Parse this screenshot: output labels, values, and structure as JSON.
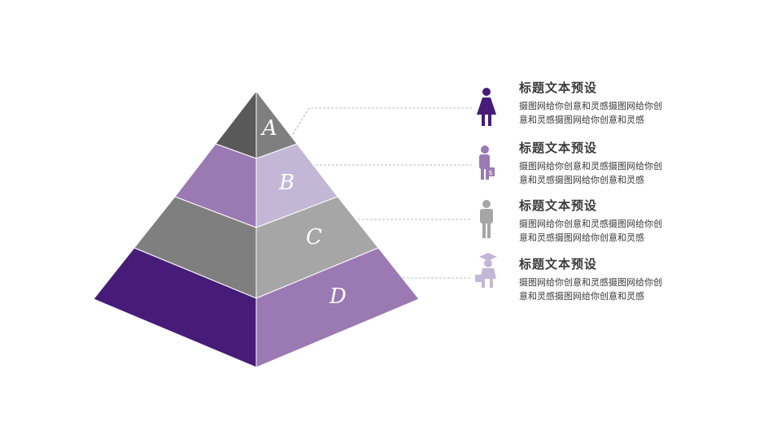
{
  "colors": {
    "purple_dark": "#461c78",
    "purple_mid": "#9b7ab3",
    "purple_light": "#c4b7d6",
    "gray_dark": "#595959",
    "gray_mid": "#7f7f7f",
    "gray_light": "#a6a6a6",
    "connector": "#a6a6a6"
  },
  "tiers": [
    {
      "letter": "A"
    },
    {
      "letter": "B"
    },
    {
      "letter": "C"
    },
    {
      "letter": "D"
    }
  ],
  "items": [
    {
      "title": "标题文本预设",
      "desc": "摄图网给你创意和灵感摄图网给你创意和灵感摄图网给你创意和灵感",
      "icon": "woman-icon"
    },
    {
      "title": "标题文本预设",
      "desc": "摄图网给你创意和灵感摄图网给你创意和灵感摄图网给你创意和灵感",
      "icon": "businessman-money-icon"
    },
    {
      "title": "标题文本预设",
      "desc": "摄图网给你创意和灵感摄图网给你创意和灵感摄图网给你创意和灵感",
      "icon": "man-icon"
    },
    {
      "title": "标题文本预设",
      "desc": "摄图网给你创意和灵感摄图网给你创意和灵感摄图网给你创意和灵感",
      "icon": "graduate-icon"
    }
  ]
}
